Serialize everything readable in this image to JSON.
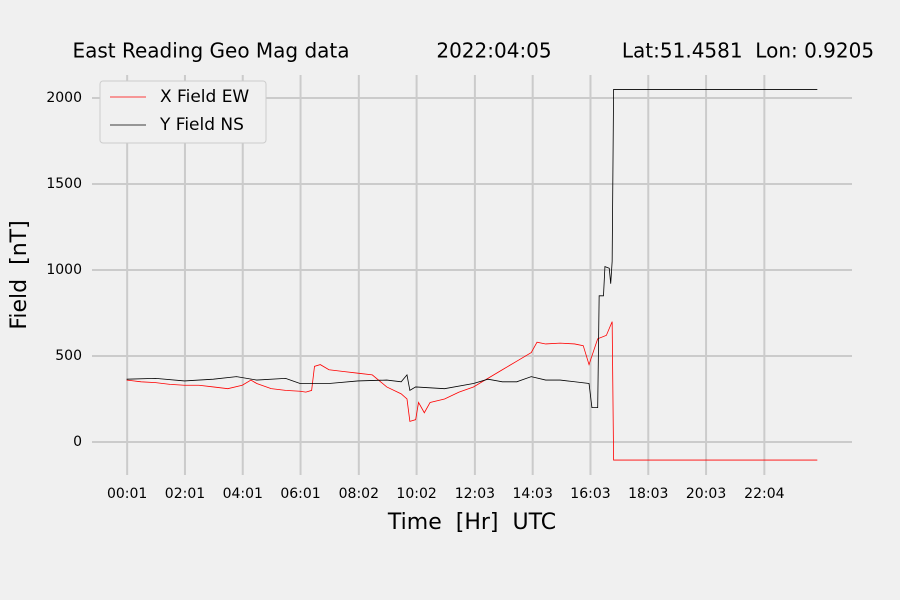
{
  "chart_data": {
    "type": "line",
    "title": [
      "East Reading Geo Mag data",
      "2022:04:05",
      "Lat:51.4581  Lon: 0.9205"
    ],
    "xlabel": "Time  [Hr]  UTC",
    "ylabel": "Field  [nT]",
    "xlim": [
      -1.2,
      25.1
    ],
    "ylim": [
      -192,
      2134
    ],
    "xticks": [
      {
        "value": 0.017,
        "label": "00:01"
      },
      {
        "value": 2.017,
        "label": "02:01"
      },
      {
        "value": 4.017,
        "label": "04:01"
      },
      {
        "value": 6.017,
        "label": "06:01"
      },
      {
        "value": 8.033,
        "label": "08:02"
      },
      {
        "value": 10.033,
        "label": "10:02"
      },
      {
        "value": 12.05,
        "label": "12:03"
      },
      {
        "value": 14.05,
        "label": "14:03"
      },
      {
        "value": 16.05,
        "label": "16:03"
      },
      {
        "value": 18.05,
        "label": "18:03"
      },
      {
        "value": 20.05,
        "label": "20:03"
      },
      {
        "value": 22.067,
        "label": "22:04"
      }
    ],
    "yticks": [
      0,
      500,
      1000,
      1500,
      2000
    ],
    "grid": true,
    "legend": "upper left",
    "series": [
      {
        "name": "X Field EW",
        "color": "#ff0000",
        "x": [
          0,
          0.5,
          1,
          1.5,
          2,
          2.5,
          3,
          3.5,
          4,
          4.3,
          4.5,
          5,
          5.5,
          6,
          6.2,
          6.4,
          6.5,
          6.7,
          7,
          7.5,
          8,
          8.5,
          9,
          9.5,
          9.7,
          9.8,
          10,
          10.1,
          10.3,
          10.5,
          11,
          11.5,
          12,
          12.5,
          13,
          13.5,
          14,
          14.2,
          14.5,
          15,
          15.5,
          15.8,
          16,
          16.3,
          16.6,
          16.8,
          16.85,
          23.9
        ],
        "values": [
          360,
          350,
          345,
          335,
          330,
          330,
          320,
          310,
          330,
          360,
          340,
          310,
          300,
          295,
          290,
          300,
          440,
          450,
          420,
          410,
          400,
          390,
          320,
          280,
          250,
          120,
          130,
          230,
          170,
          230,
          250,
          290,
          320,
          370,
          420,
          470,
          520,
          580,
          570,
          575,
          570,
          560,
          450,
          600,
          620,
          700,
          -105,
          -105
        ]
      },
      {
        "name": "Y Field NS",
        "color": "#000000",
        "x": [
          0,
          1,
          2,
          3,
          3.8,
          4.5,
          5.5,
          6,
          7,
          8,
          9,
          9.5,
          9.7,
          9.8,
          10,
          11,
          12,
          12.5,
          13,
          13.5,
          14,
          14.5,
          15,
          15.5,
          16,
          16.1,
          16.3,
          16.35,
          16.5,
          16.55,
          16.7,
          16.75,
          16.8,
          16.85,
          23.9
        ],
        "values": [
          365,
          370,
          355,
          365,
          380,
          360,
          370,
          340,
          340,
          355,
          360,
          350,
          390,
          300,
          320,
          310,
          340,
          365,
          350,
          350,
          380,
          360,
          360,
          350,
          340,
          200,
          200,
          850,
          850,
          1020,
          1010,
          920,
          1050,
          2050,
          2050
        ]
      }
    ]
  }
}
